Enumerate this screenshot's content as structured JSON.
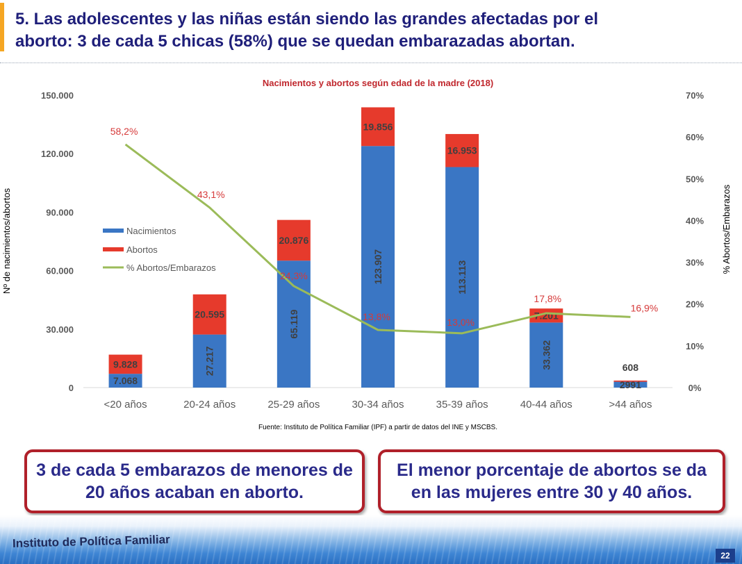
{
  "slide": {
    "title_line1": "5. Las adolescentes y las niñas están siendo las grandes afectadas por el",
    "title_line2": "aborto: 3 de cada 5 chicas (58%) que se quedan embarazadas abortan."
  },
  "callouts": {
    "left": "3 de cada 5 embarazos de menores de 20 años acaban en aborto.",
    "right": "El menor porcentaje de abortos se da en las mujeres entre 30 y 40 años."
  },
  "footer": {
    "org": "Instituto de Política Familiar",
    "page": "22"
  },
  "colors": {
    "births": "#3a76c4",
    "abortions": "#e63a2c",
    "pct_line": "#9bbb59",
    "chart_title": "#c0272d",
    "pct_label": "#d63a3a",
    "title": "#1f1f7a"
  },
  "chart_data": {
    "type": "bar",
    "stacked": true,
    "title": "Nacimientos y abortos según edad de la madre (2018)",
    "source": "Fuente: Instituto de Política Familiar (IPF) a partir de datos del INE y MSCBS.",
    "ylabel": "Nº de nacimientos/abortos",
    "y2label": "% Abortos/Embarazos",
    "ylim": [
      0,
      150000
    ],
    "y2lim": [
      0,
      70
    ],
    "yticks": [
      "0",
      "30.000",
      "60.000",
      "90.000",
      "120.000",
      "150.000"
    ],
    "y2ticks": [
      "0%",
      "10%",
      "20%",
      "30%",
      "40%",
      "50%",
      "60%",
      "70%"
    ],
    "legend_position": "left-middle",
    "categories": [
      "<20 años",
      "20-24 años",
      "25-29 años",
      "30-34 años",
      "35-39 años",
      "40-44 años",
      ">44 años"
    ],
    "series": [
      {
        "name": "Nacimientos",
        "values": [
          7068,
          27217,
          65119,
          123907,
          113113,
          33362,
          2991
        ],
        "labels": [
          "7.068",
          "27.217",
          "65.119",
          "123.907",
          "113.113",
          "33.362",
          "2991"
        ]
      },
      {
        "name": "Abortos",
        "values": [
          9828,
          20595,
          20876,
          19856,
          16953,
          7201,
          608
        ],
        "labels": [
          "9.828",
          "20.595",
          "20.876",
          "19.856",
          "16.953",
          "7.201",
          "608"
        ]
      },
      {
        "name": "% Abortos/Embarazos",
        "axis": "right",
        "values": [
          58.2,
          43.1,
          24.3,
          13.8,
          13.0,
          17.8,
          16.9
        ],
        "labels": [
          "58,2%",
          "43,1%",
          "24,3%",
          "13,8%",
          "13,0%",
          "17,8%",
          "16,9%"
        ]
      }
    ]
  }
}
